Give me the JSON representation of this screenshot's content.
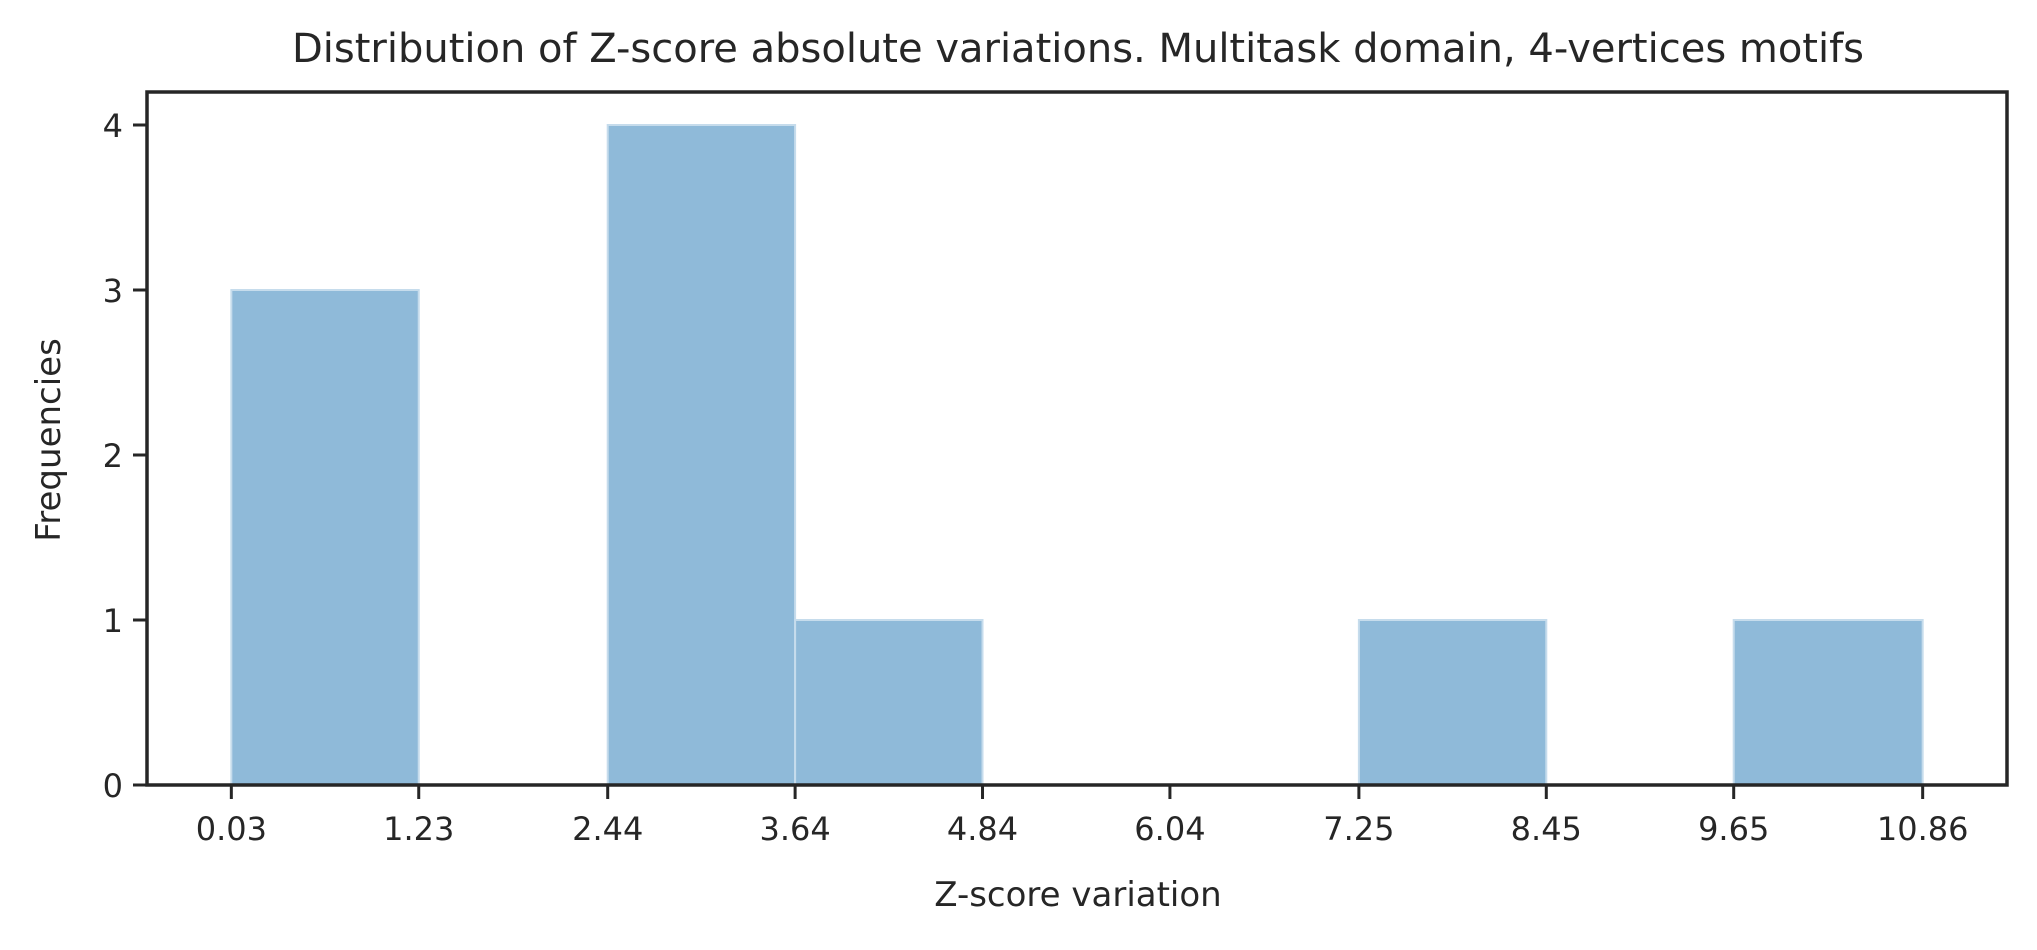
{
  "chart_data": {
    "type": "bar",
    "title": "Distribution of Z-score absolute variations. Multitask domain, 4-vertices motifs",
    "xlabel": "Z-score variation",
    "ylabel": "Frequencies",
    "bins": [
      {
        "start": 0.03,
        "end": 1.23,
        "value": 3
      },
      {
        "start": 1.23,
        "end": 2.44,
        "value": 0
      },
      {
        "start": 2.44,
        "end": 3.64,
        "value": 4
      },
      {
        "start": 3.64,
        "end": 4.84,
        "value": 1
      },
      {
        "start": 4.84,
        "end": 6.04,
        "value": 0
      },
      {
        "start": 6.04,
        "end": 7.25,
        "value": 0
      },
      {
        "start": 7.25,
        "end": 8.45,
        "value": 1
      },
      {
        "start": 8.45,
        "end": 9.65,
        "value": 0
      },
      {
        "start": 9.65,
        "end": 10.86,
        "value": 1
      }
    ],
    "x_ticks": [
      0.03,
      1.23,
      2.44,
      3.64,
      4.84,
      6.04,
      7.25,
      8.45,
      9.65,
      10.86
    ],
    "x_tick_labels": [
      "0.03",
      "1.23",
      "2.44",
      "3.64",
      "4.84",
      "6.04",
      "7.25",
      "8.45",
      "9.65",
      "10.86"
    ],
    "y_ticks": [
      0,
      1,
      2,
      3,
      4
    ],
    "y_tick_labels": [
      "0",
      "1",
      "2",
      "3",
      "4"
    ],
    "xlim": [
      -0.51,
      11.4
    ],
    "ylim": [
      0,
      4.2
    ],
    "grid": false,
    "colors": {
      "bar_fill": "#8fbad9",
      "bar_edge": "#c6dcec",
      "axes": "#262626",
      "text": "#262626"
    }
  }
}
